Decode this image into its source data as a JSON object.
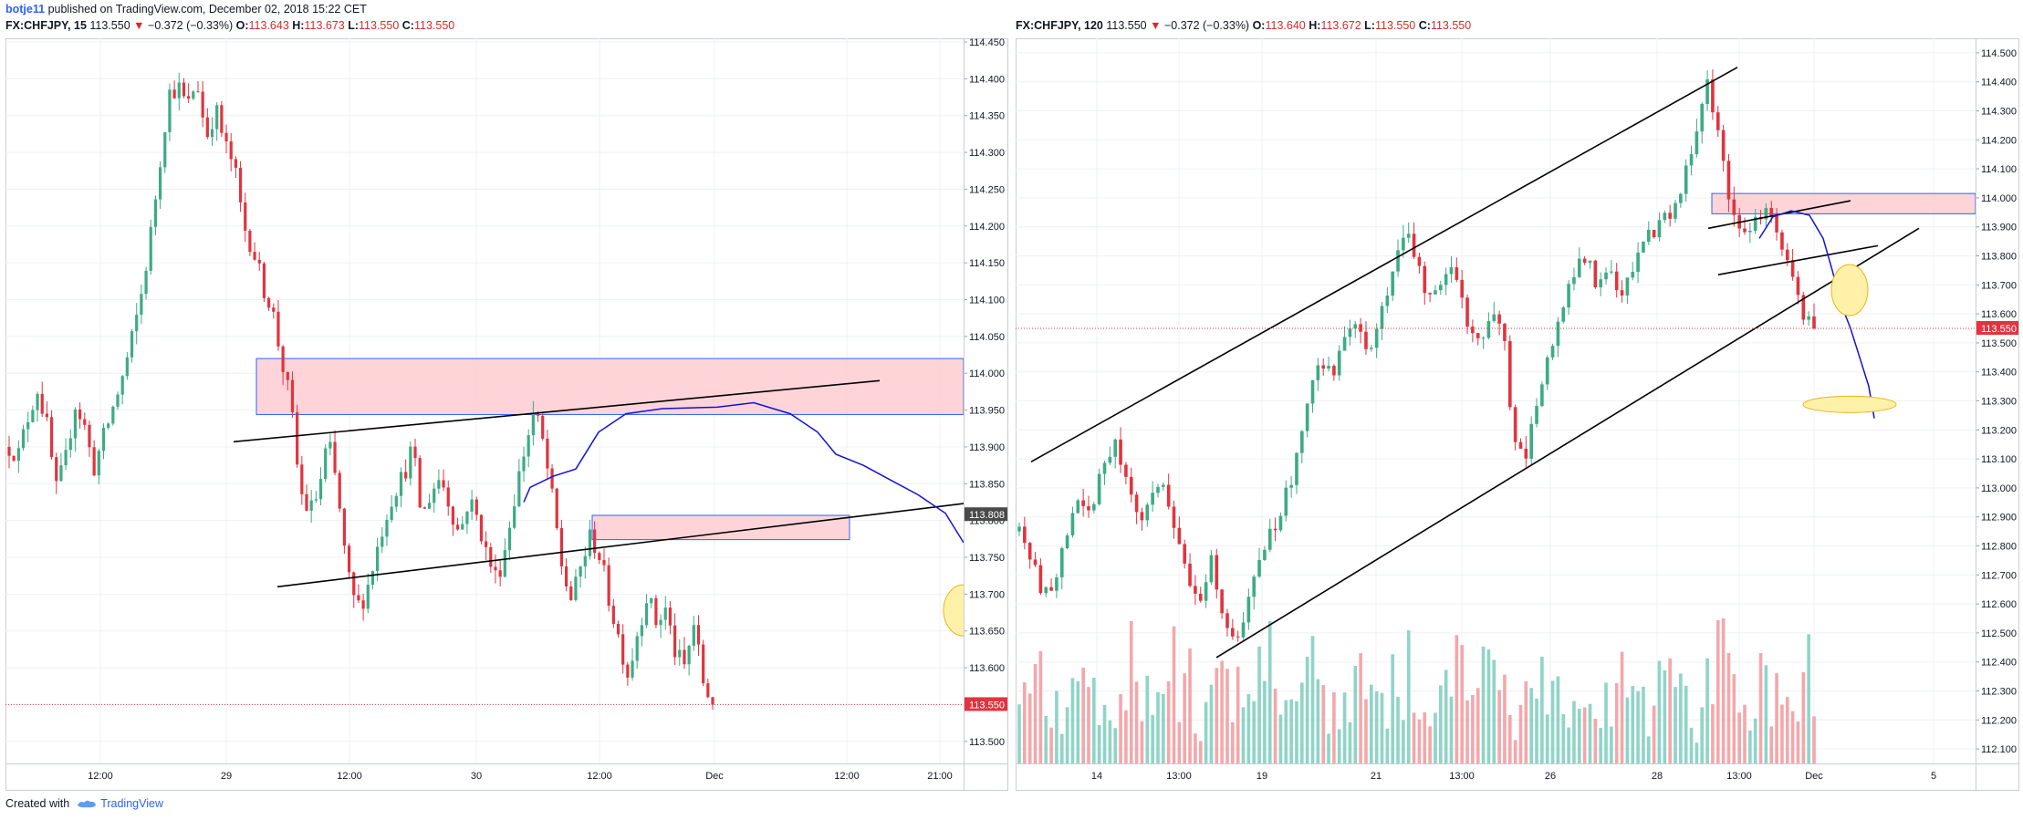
{
  "header": {
    "user": "botje11",
    "published": "published on TradingView.com, December 02, 2018 15:22 CET"
  },
  "left_chart_header": {
    "symbol": "FX:CHFJPY, 15",
    "last": "113.550",
    "arrow": "▼",
    "change": "−0.372 (−0.33%)",
    "o_label": "O:",
    "o": "113.643",
    "h_label": "H:",
    "h": "113.673",
    "l_label": "L:",
    "l": "113.550",
    "c_label": "C:",
    "c": "113.550"
  },
  "right_chart_header": {
    "symbol": "FX:CHFJPY, 120",
    "last": "113.550",
    "arrow": "▼",
    "change": "−0.372 (−0.33%)",
    "o_label": "O:",
    "o": "113.640",
    "h_label": "H:",
    "h": "113.672",
    "l_label": "L:",
    "l": "113.550",
    "c_label": "C:",
    "c": "113.550"
  },
  "footer": {
    "created": "Created with",
    "brand": "TradingView"
  },
  "colors": {
    "up": "#3dab84",
    "down": "#e0343f",
    "vol_up": "#8fd4c7",
    "vol_down": "#f2a8ab",
    "zone_fill": "#ffcdd2",
    "zone_stroke": "#2962ff",
    "forecast": "#1212d8",
    "ellipse_fill": "#fff2a8",
    "ellipse_stroke": "#e8b31a",
    "price_line": "#e0343f",
    "grid": "#eef1f4"
  },
  "chart_data": [
    {
      "type": "candlestick",
      "symbol": "FX:CHFJPY",
      "interval": "15",
      "ylim": [
        113.47,
        114.455
      ],
      "y_ticks": [
        "114.450",
        "114.400",
        "114.350",
        "114.300",
        "114.250",
        "114.200",
        "114.150",
        "114.100",
        "114.050",
        "114.000",
        "113.950",
        "113.900",
        "113.850",
        "113.800",
        "113.750",
        "113.700",
        "113.650",
        "113.600",
        "113.550",
        "113.500"
      ],
      "x_ticks": [
        "12:00",
        "29",
        "12:00",
        "30",
        "12:00",
        "Dec",
        "12:00",
        "21:00"
      ],
      "last_price": "113.550",
      "marked_price": "113.808",
      "path": [
        113.9,
        113.89,
        113.94,
        113.98,
        113.93,
        113.84,
        113.88,
        113.96,
        113.93,
        113.87,
        113.91,
        113.95,
        113.99,
        114.04,
        114.1,
        114.18,
        114.28,
        114.38,
        114.39,
        114.36,
        114.4,
        114.32,
        114.36,
        114.31,
        114.28,
        114.2,
        114.17,
        114.12,
        114.09,
        114.02,
        113.96,
        113.84,
        113.81,
        113.84,
        113.91,
        113.84,
        113.73,
        113.68,
        113.7,
        113.75,
        113.8,
        113.84,
        113.86,
        113.9,
        113.8,
        113.84,
        113.86,
        113.82,
        113.78,
        113.83,
        113.8,
        113.75,
        113.72,
        113.77,
        113.84,
        113.9,
        113.95,
        113.9,
        113.82,
        113.73,
        113.69,
        113.74,
        113.78,
        113.75,
        113.69,
        113.64,
        113.59,
        113.65,
        113.7,
        113.66,
        113.68,
        113.62,
        113.6,
        113.66,
        113.58,
        113.55
      ]
    },
    {
      "type": "candlestick",
      "symbol": "FX:CHFJPY",
      "interval": "120",
      "ylim": [
        112.05,
        114.55
      ],
      "y_ticks": [
        "114.500",
        "114.400",
        "114.300",
        "114.200",
        "114.100",
        "114.000",
        "113.900",
        "113.800",
        "113.700",
        "113.600",
        "113.500",
        "113.400",
        "113.300",
        "113.200",
        "113.100",
        "113.000",
        "112.900",
        "112.800",
        "112.700",
        "112.600",
        "112.500",
        "112.400",
        "112.300",
        "112.200",
        "112.100"
      ],
      "x_ticks": [
        "14",
        "13:00",
        "19",
        "21",
        "13:00",
        "26",
        "28",
        "13:00",
        "Dec",
        "5"
      ],
      "last_price": "113.550",
      "path": [
        112.85,
        112.75,
        112.62,
        112.7,
        112.85,
        112.95,
        112.9,
        113.1,
        113.15,
        113.05,
        112.85,
        112.95,
        113.0,
        112.85,
        112.7,
        112.6,
        112.75,
        112.55,
        112.45,
        112.6,
        112.75,
        112.85,
        112.95,
        113.1,
        113.3,
        113.45,
        113.4,
        113.5,
        113.55,
        113.45,
        113.6,
        113.75,
        113.9,
        113.8,
        113.65,
        113.7,
        113.75,
        113.6,
        113.5,
        113.55,
        113.6,
        113.2,
        113.1,
        113.3,
        113.45,
        113.6,
        113.75,
        113.8,
        113.7,
        113.75,
        113.65,
        113.75,
        113.85,
        113.9,
        113.95,
        114.05,
        114.15,
        114.4,
        114.25,
        114.0,
        113.85,
        113.9,
        113.95,
        113.9,
        113.75,
        113.6,
        113.55
      ]
    }
  ]
}
